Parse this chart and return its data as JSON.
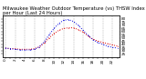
{
  "title": "Milwaukee Weather Outdoor Temperature (vs) THSW Index per Hour (Last 24 Hours)",
  "hours": [
    0,
    1,
    2,
    3,
    4,
    5,
    6,
    7,
    8,
    9,
    10,
    11,
    12,
    13,
    14,
    15,
    16,
    17,
    18,
    19,
    20,
    21,
    22,
    23
  ],
  "temp": [
    34,
    33,
    33,
    32,
    32,
    32,
    33,
    36,
    42,
    50,
    57,
    62,
    65,
    66,
    66,
    63,
    59,
    53,
    48,
    45,
    43,
    41,
    39,
    37
  ],
  "thsw": [
    34,
    33,
    32,
    31,
    31,
    31,
    32,
    36,
    44,
    55,
    65,
    73,
    78,
    79,
    76,
    70,
    62,
    54,
    47,
    43,
    40,
    37,
    35,
    34
  ],
  "temp_color": "#dd0000",
  "thsw_color": "#0000dd",
  "bg_color": "#ffffff",
  "grid_color": "#999999",
  "ylim": [
    20,
    85
  ],
  "y_ticks": [
    25,
    30,
    35,
    40,
    45,
    50,
    55,
    60,
    65,
    70,
    75,
    80
  ],
  "title_fontsize": 3.8,
  "tick_fontsize": 3.0,
  "linewidth": 0.7,
  "markersize": 1.0
}
